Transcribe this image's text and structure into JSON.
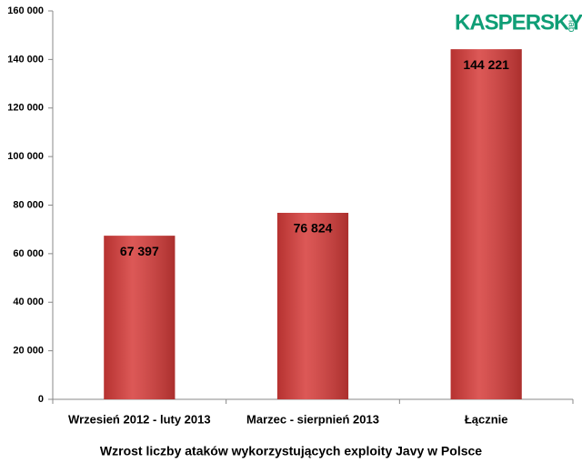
{
  "chart_data": {
    "type": "bar",
    "title": "Wzrost liczby ataków wykorzystujących exploity Javy w Polsce",
    "logo": "KASPERSKY",
    "logo_sub": "lab",
    "categories": [
      "Wrzesień 2012 - luty 2013",
      "Marzec - sierpnień 2013",
      "Łącznie"
    ],
    "values": [
      67397,
      76824,
      144221
    ],
    "value_labels": [
      "67 397",
      "76 824",
      "144 221"
    ],
    "color": "#d63b39",
    "ylim": [
      0,
      160000
    ],
    "yticks": [
      0,
      {
        "value": 20000,
        "label": "20 000"
      },
      {
        "value": 40000,
        "label": "40 000"
      },
      {
        "value": 60000,
        "label": "60 000"
      },
      {
        "value": 80000,
        "label": "80 000"
      },
      {
        "value": 100000,
        "label": "100 000"
      },
      {
        "value": 120000,
        "label": "120 000"
      },
      {
        "value": 140000,
        "label": "140 000"
      },
      {
        "value": 160000,
        "label": "160 000"
      }
    ],
    "grid": false
  }
}
